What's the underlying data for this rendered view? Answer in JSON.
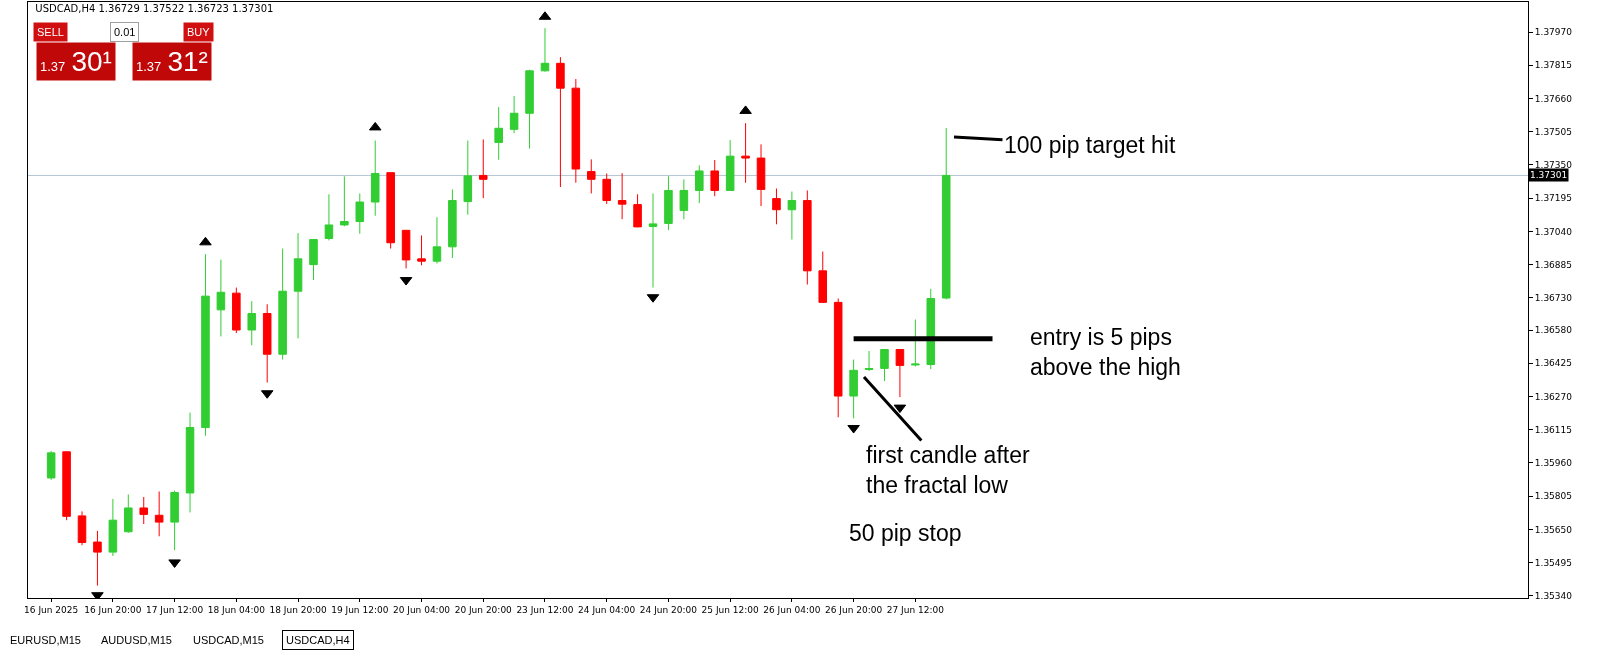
{
  "chart_data": {
    "type": "candlestick",
    "title": "USDCAD,H4 1.36729 1.37522 1.36723 1.37301",
    "categories": [
      "16 Jun 2025",
      null,
      null,
      null,
      "16 Jun 20:00",
      null,
      null,
      null,
      "17 Jun 12:00",
      null,
      null,
      null,
      "18 Jun 04:00",
      null,
      null,
      null,
      "18 Jun 20:00",
      null,
      null,
      null,
      "19 Jun 12:00",
      null,
      null,
      null,
      "20 Jun 04:00",
      null,
      null,
      null,
      "20 Jun 20:00",
      null,
      null,
      null,
      "23 Jun 12:00",
      null,
      null,
      null,
      "24 Jun 04:00",
      null,
      null,
      null,
      "24 Jun 20:00",
      null,
      null,
      null,
      "25 Jun 12:00",
      null,
      null,
      null,
      "26 Jun 04:00",
      null,
      null,
      null,
      "26 Jun 20:00",
      null,
      null,
      null,
      "27 Jun 12:00",
      null,
      null,
      null,
      null,
      null,
      null,
      null,
      null,
      null,
      null,
      null,
      null,
      null,
      null,
      null,
      null,
      null,
      null,
      null,
      null,
      null,
      null,
      null,
      null,
      null,
      null,
      null,
      null,
      null,
      null,
      null,
      null,
      null,
      null,
      null,
      null,
      null,
      null,
      null
    ],
    "ohlc": [
      [
        1.3589,
        1.36016,
        1.35881,
        1.36007
      ],
      [
        1.36012,
        1.36012,
        1.35693,
        1.35711
      ],
      [
        1.35713,
        1.35734,
        1.35576,
        1.35589
      ],
      [
        1.35591,
        1.35643,
        1.35388,
        1.35544
      ],
      [
        1.35544,
        1.35792,
        1.35526,
        1.35693
      ],
      [
        1.35639,
        1.35813,
        1.35634,
        1.3575
      ],
      [
        1.3575,
        1.35801,
        1.35675,
        1.3572
      ],
      [
        1.35716,
        1.35827,
        1.35618,
        1.35684
      ],
      [
        1.35684,
        1.35831,
        1.35553,
        1.35822
      ],
      [
        1.3582,
        1.36195,
        1.35729,
        1.36125
      ],
      [
        1.36125,
        1.36934,
        1.36087,
        1.36738
      ],
      [
        1.36674,
        1.36908,
        1.3655,
        1.36756
      ],
      [
        1.36752,
        1.36778,
        1.36566,
        1.3658
      ],
      [
        1.3658,
        1.36715,
        1.36509,
        1.36657
      ],
      [
        1.36657,
        1.367,
        1.36335,
        1.36467
      ],
      [
        1.36467,
        1.3696,
        1.36442,
        1.36761
      ],
      [
        1.36761,
        1.37032,
        1.36541,
        1.36912
      ],
      [
        1.36885,
        1.37002,
        1.36813,
        1.37002
      ],
      [
        1.37007,
        1.37213,
        1.36998,
        1.3707
      ],
      [
        1.3707,
        1.37297,
        1.37064,
        1.37086
      ],
      [
        1.37086,
        1.37217,
        1.37029,
        1.37177
      ],
      [
        1.37177,
        1.37464,
        1.37113,
        1.3731
      ],
      [
        1.37314,
        1.37314,
        1.3696,
        1.36987
      ],
      [
        1.37045,
        1.37046,
        1.36867,
        1.36907
      ],
      [
        1.36912,
        1.37021,
        1.36882,
        1.36901
      ],
      [
        1.36901,
        1.37106,
        1.3689,
        1.36968
      ],
      [
        1.36968,
        1.37236,
        1.36916,
        1.37184
      ],
      [
        1.37179,
        1.37464,
        1.37118,
        1.37299
      ],
      [
        1.37301,
        1.37469,
        1.37195,
        1.37283
      ],
      [
        1.37455,
        1.3762,
        1.37374,
        1.37521
      ],
      [
        1.37516,
        1.37672,
        1.37498,
        1.37591
      ],
      [
        1.37591,
        1.37794,
        1.37426,
        1.37789
      ],
      [
        1.37789,
        1.37988,
        1.37785,
        1.37824
      ],
      [
        1.37824,
        1.37853,
        1.37247,
        1.37708
      ],
      [
        1.37708,
        1.37751,
        1.37267,
        1.37331
      ],
      [
        1.37319,
        1.37376,
        1.37217,
        1.37283
      ],
      [
        1.37283,
        1.3731,
        1.37168,
        1.37184
      ],
      [
        1.37184,
        1.37312,
        1.37097,
        1.37167
      ],
      [
        1.37165,
        1.37213,
        1.37059,
        1.37061
      ],
      [
        1.37063,
        1.37217,
        1.36778,
        1.37075
      ],
      [
        1.37077,
        1.37297,
        1.37046,
        1.37231
      ],
      [
        1.37138,
        1.37283,
        1.37097,
        1.37231
      ],
      [
        1.37231,
        1.37348,
        1.37172,
        1.37322
      ],
      [
        1.37322,
        1.37373,
        1.37204,
        1.37231
      ],
      [
        1.37231,
        1.37466,
        1.37231,
        1.37391
      ],
      [
        1.37391,
        1.37545,
        1.37267,
        1.37382
      ],
      [
        1.37382,
        1.37446,
        1.37158,
        1.37236
      ],
      [
        1.37193,
        1.3724,
        1.37073,
        1.37141
      ],
      [
        1.37141,
        1.37226,
        1.37002,
        1.37184
      ],
      [
        1.37184,
        1.37231,
        1.36792,
        1.36856
      ],
      [
        1.36856,
        1.36946,
        1.36706,
        1.36709
      ],
      [
        1.36709,
        1.36727,
        1.36173,
        1.36272
      ],
      [
        1.36272,
        1.36442,
        1.36168,
        1.36392
      ],
      [
        1.36396,
        1.36482,
        1.36389,
        1.364
      ],
      [
        1.36401,
        1.36489,
        1.36342,
        1.36489
      ],
      [
        1.36489,
        1.36489,
        1.36267,
        1.36415
      ],
      [
        1.36417,
        1.36629,
        1.3641,
        1.36421
      ],
      [
        1.36419,
        1.36772,
        1.36398,
        1.36727
      ],
      [
        1.36729,
        1.37522,
        1.36723,
        1.37301
      ],
      null,
      null,
      null,
      null,
      null,
      null,
      null,
      null,
      null,
      null,
      null,
      null,
      null,
      null,
      null,
      null,
      null,
      null,
      null,
      null,
      null,
      null,
      null,
      null,
      null,
      null,
      null,
      null,
      null,
      null,
      null,
      null,
      null,
      null,
      null,
      null,
      null
    ],
    "colors": [
      "#32cd32",
      "#ff0000",
      "#ff0000",
      "#ff0000",
      "#32cd32",
      "#32cd32",
      "#ff0000",
      "#ff0000",
      "#32cd32",
      "#32cd32",
      "#32cd32",
      "#32cd32",
      "#ff0000",
      "#32cd32",
      "#ff0000",
      "#32cd32",
      "#32cd32",
      "#32cd32",
      "#32cd32",
      "#32cd32",
      "#32cd32",
      "#32cd32",
      "#ff0000",
      "#ff0000",
      "#ff0000",
      "#32cd32",
      "#32cd32",
      "#32cd32",
      "#ff0000",
      "#32cd32",
      "#32cd32",
      "#32cd32",
      "#32cd32",
      "#ff0000",
      "#ff0000",
      "#ff0000",
      "#ff0000",
      "#ff0000",
      "#ff0000",
      "#32cd32",
      "#32cd32",
      "#32cd32",
      "#32cd32",
      "#ff0000",
      "#32cd32",
      "#ff0000",
      "#ff0000",
      "#ff0000",
      "#32cd32",
      "#ff0000",
      "#ff0000",
      "#ff0000",
      "#32cd32",
      "#32cd32",
      "#32cd32",
      "#ff0000",
      "#32cd32",
      "#32cd32",
      "#32cd32",
      null,
      null,
      null,
      null,
      null,
      null,
      null,
      null,
      null,
      null,
      null,
      null,
      null,
      null,
      null,
      null,
      null,
      null,
      null,
      null,
      null,
      null,
      null,
      null,
      null,
      null,
      null,
      null,
      null,
      null,
      null,
      null,
      null,
      null,
      null,
      null,
      null
    ],
    "series": [
      {
        "type": "scatter",
        "marker": "triangle",
        "color": "#000000",
        "values": [
          null,
          null,
          null,
          null,
          null,
          null,
          null,
          null,
          null,
          null,
          1.36989,
          null,
          null,
          null,
          null,
          null,
          null,
          null,
          null,
          null,
          null,
          1.37525,
          null,
          null,
          null,
          null,
          null,
          null,
          null,
          null,
          null,
          null,
          1.38041,
          null,
          null,
          null,
          null,
          null,
          null,
          null,
          null,
          null,
          null,
          null,
          null,
          1.37602,
          null,
          null,
          null,
          null,
          null,
          null,
          null,
          null,
          null,
          null,
          null,
          null,
          null,
          null,
          null,
          null,
          null,
          null,
          null,
          null,
          null,
          null,
          null,
          null,
          null,
          null,
          null,
          null,
          null,
          null,
          null,
          null,
          null,
          null,
          null,
          null,
          null,
          null,
          null,
          null,
          null,
          null,
          null,
          null,
          null,
          null,
          null,
          null,
          null,
          null
        ]
      },
      {
        "type": "scatter",
        "marker": "triangle",
        "color": "#000000",
        "values": [
          null,
          null,
          null,
          1.35343,
          null,
          null,
          null,
          null,
          1.35496,
          null,
          null,
          null,
          null,
          null,
          1.36285,
          null,
          null,
          null,
          null,
          null,
          null,
          null,
          null,
          1.36813,
          null,
          null,
          null,
          null,
          null,
          null,
          null,
          null,
          null,
          null,
          null,
          null,
          null,
          null,
          null,
          1.36733,
          null,
          null,
          null,
          null,
          null,
          null,
          null,
          null,
          null,
          null,
          null,
          null,
          1.36123,
          null,
          null,
          1.36218,
          null,
          null,
          null,
          null,
          null,
          null,
          null,
          null,
          null,
          null,
          null,
          null,
          null,
          null,
          null,
          null,
          null,
          null,
          null,
          null,
          null,
          null,
          null,
          null,
          null,
          null,
          null,
          null,
          null,
          null,
          null,
          null,
          null,
          null,
          null,
          null,
          null,
          null,
          null,
          null
        ]
      },
      {
        "type": "line",
        "color": "#000000",
        "values": [
          null,
          null,
          null,
          null,
          null,
          null,
          null,
          null,
          null,
          null,
          null,
          null,
          null,
          null,
          null,
          null,
          null,
          null,
          null,
          null,
          null,
          null,
          null,
          null,
          null,
          null,
          null,
          null,
          null,
          null,
          null,
          null,
          null,
          null,
          null,
          null,
          null,
          null,
          null,
          null,
          null,
          null,
          null,
          null,
          null,
          null,
          null,
          null,
          null,
          null,
          null,
          null,
          1.36539,
          1.36539,
          1.36539,
          1.36539,
          1.36539,
          1.36539,
          1.36539,
          1.36539,
          1.36539,
          1.36539,
          null,
          null,
          null,
          null,
          null,
          null,
          null,
          null,
          null,
          null,
          null,
          null,
          null,
          null,
          null,
          null,
          null,
          null,
          null,
          null,
          null,
          null,
          null,
          null,
          null,
          null,
          null,
          null,
          null,
          null,
          null,
          null,
          null,
          null
        ]
      }
    ],
    "ref_lines": [
      {
        "axis": "y",
        "value": 1.37301,
        "label": "1.37301",
        "color": "#b4c4d2"
      }
    ],
    "ylim": [
      1.3533,
      1.3811
    ],
    "yticks": [
      {
        "value": 1.3797,
        "label": "1.37970"
      },
      1.37815,
      {
        "value": 1.3766,
        "label": "1.37660"
      },
      1.37505,
      {
        "value": 1.3735,
        "label": "1.37350"
      },
      1.37195,
      {
        "value": 1.3704,
        "label": "1.37040"
      },
      1.36885,
      {
        "value": 1.3673,
        "label": "1.36730"
      },
      {
        "value": 1.3658,
        "label": "1.36580"
      },
      1.36425,
      {
        "value": 1.3627,
        "label": "1.36270"
      },
      1.36115,
      {
        "value": 1.3596,
        "label": "1.35960"
      },
      1.35805,
      {
        "value": 1.3565,
        "label": "1.35650"
      },
      1.35495,
      {
        "value": 1.3534,
        "label": "1.35340"
      }
    ],
    "annotations": [
      "100 pip target hit",
      "entry is 5 pips\nabove the high",
      "first candle after\nthe fractal low",
      "50 pip stop",
      "SELL",
      "0.01",
      "BUY",
      "1.37 30¹",
      "1.37 31²",
      "EURUSD,M15",
      "AUDUSD,M15",
      "USDCAD,M15",
      "USDCAD,H4"
    ],
    "grid": false
  }
}
